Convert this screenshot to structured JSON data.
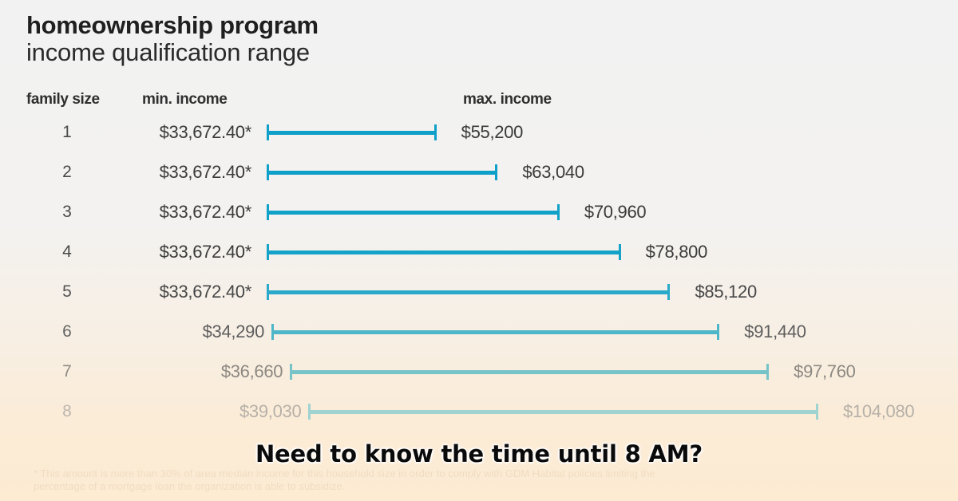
{
  "title": "homeownership program",
  "subtitle": "income qualification range",
  "headers": {
    "family_size": "family size",
    "min_income": "min. income",
    "max_income": "max. income"
  },
  "rows": [
    {
      "family_size": "1",
      "min_label": "$33,672.40*",
      "max_label": "$55,200"
    },
    {
      "family_size": "2",
      "min_label": "$33,672.40*",
      "max_label": "$63,040"
    },
    {
      "family_size": "3",
      "min_label": "$33,672.40*",
      "max_label": "$70,960"
    },
    {
      "family_size": "4",
      "min_label": "$33,672.40*",
      "max_label": "$78,800"
    },
    {
      "family_size": "5",
      "min_label": "$33,672.40*",
      "max_label": "$85,120"
    },
    {
      "family_size": "6",
      "min_label": "$34,290",
      "max_label": "$91,440"
    },
    {
      "family_size": "7",
      "min_label": "$36,660",
      "max_label": "$97,760"
    },
    {
      "family_size": "8",
      "min_label": "$39,030",
      "max_label": "$104,080"
    }
  ],
  "footnote": "* This amount is more than 30% of area median income for this household size in order to comply with GDM Habitat policies limiting the percentage of a mortgage loan the organization is able to subsidize.",
  "caption": "Need to know the time until 8 AM?",
  "colors": {
    "bars": [
      "#0ea0c9",
      "#0ea0c9",
      "#10a1c9",
      "#14a2c9",
      "#2aa9cb",
      "#4eb6c9",
      "#76c3c8",
      "#9ed3d2"
    ],
    "text": [
      "#3a3a3a",
      "#3a3a3a",
      "#3a3a3a",
      "#3b3b3b",
      "#474747",
      "#5e5e5e",
      "#8c8882",
      "#b6b0a8"
    ],
    "family_text": [
      "#4a4a4a",
      "#4a4a4a",
      "#4a4a4a",
      "#4a4a4a",
      "#555555",
      "#666666",
      "#8e8a84",
      "#bcb6ae"
    ]
  },
  "chart_data": {
    "type": "range-bar",
    "title": "homeownership program",
    "subtitle": "income qualification range",
    "categories": [
      "1",
      "2",
      "3",
      "4",
      "5",
      "6",
      "7",
      "8"
    ],
    "category_label": "family size",
    "series": [
      {
        "name": "min. income",
        "values": [
          33672.4,
          33672.4,
          33672.4,
          33672.4,
          33672.4,
          34290,
          36660,
          39030
        ]
      },
      {
        "name": "max. income",
        "values": [
          55200,
          63040,
          70960,
          78800,
          85120,
          91440,
          97760,
          104080
        ]
      }
    ],
    "annotations": [
      "* This amount is more than 30% of area median income for this household size in order to comply with GDM Habitat policies limiting the percentage of a mortgage loan the organization is able to subsidize."
    ],
    "orientation": "horizontal",
    "grid": false,
    "legend": "none (column headers)"
  }
}
